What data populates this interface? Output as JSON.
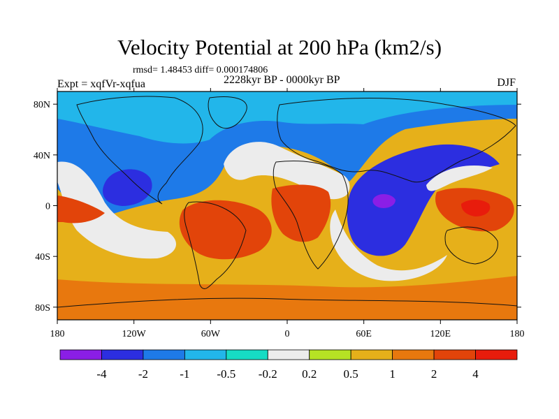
{
  "chart_data": {
    "type": "heatmap",
    "title": "Velocity Potential at 200 hPa (km2/s)",
    "stats_label": "rmsd= 1.48453 diff= 0.000174806",
    "experiment_label": "Expt = xqfVr-xqfua",
    "period_label": "2228kyr BP - 0000kyr BP",
    "season_label": "DJF",
    "x_ticks": [
      "180",
      "120W",
      "60W",
      "0",
      "60E",
      "120E",
      "180"
    ],
    "y_ticks": [
      "80N",
      "40N",
      "0",
      "40S",
      "80S"
    ],
    "x_range": [
      -180,
      180
    ],
    "y_range": [
      -90,
      90
    ],
    "colorbar": {
      "levels": [
        "-4",
        "-2",
        "-1",
        "-0.5",
        "-0.2",
        "0.2",
        "0.5",
        "1",
        "2",
        "4"
      ],
      "colors": [
        "#8a1ee6",
        "#2c2ee0",
        "#1e7ae8",
        "#22b6ea",
        "#16dcc4",
        "#ececec",
        "#b6e224",
        "#e6b01a",
        "#e8780e",
        "#e2440a",
        "#e81c0c"
      ]
    },
    "regions": [
      {
        "name": "arctic-north-band",
        "level": "-0.5"
      },
      {
        "name": "north-pacific-negative",
        "level": "-1"
      },
      {
        "name": "north-atlantic-negative",
        "level": "-1"
      },
      {
        "name": "east-pacific-negative-center",
        "level": "-2"
      },
      {
        "name": "indian-ocean-negative-center",
        "level": "-2"
      },
      {
        "name": "indian-ocean-minimum",
        "level": "-4"
      },
      {
        "name": "south-america-positive",
        "level": "2"
      },
      {
        "name": "africa-positive",
        "level": "2"
      },
      {
        "name": "maritime-continent-positive",
        "level": "2"
      },
      {
        "name": "new-guinea-maximum",
        "level": "4"
      },
      {
        "name": "southern-ocean-band",
        "level": "1"
      }
    ]
  }
}
